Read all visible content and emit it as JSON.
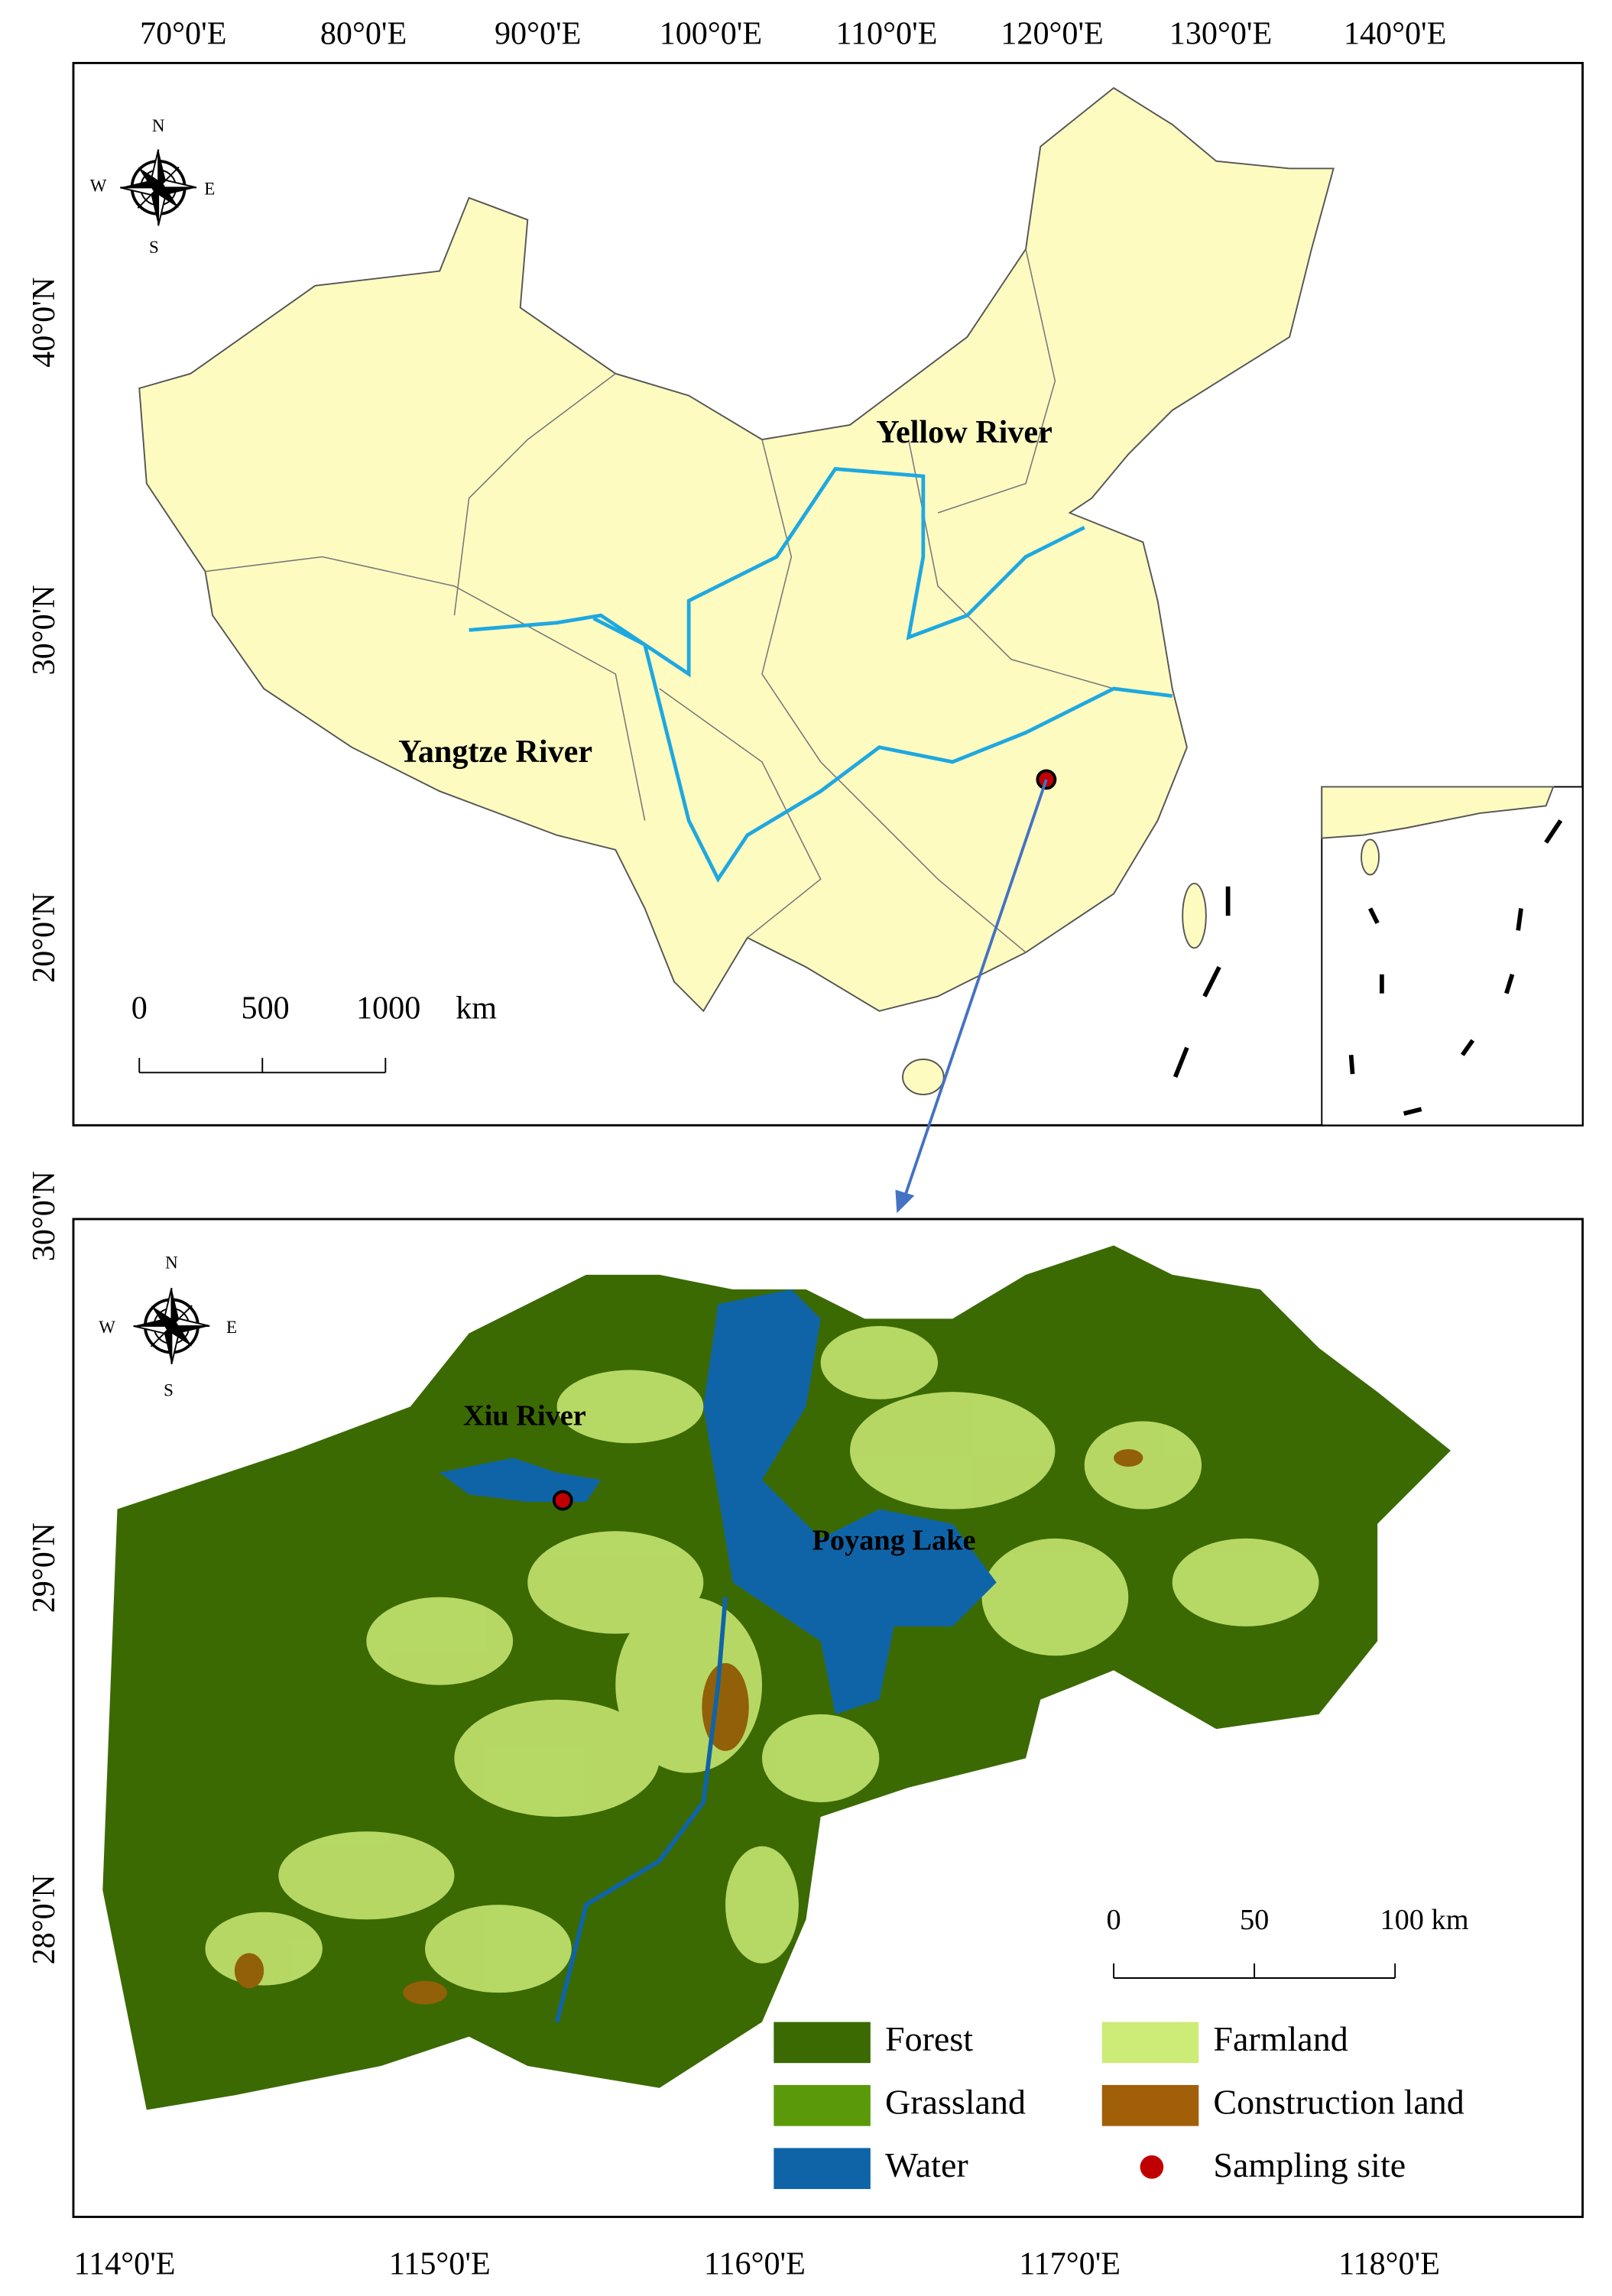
{
  "top_map": {
    "lon_labels": [
      "70°0'E",
      "80°0'E",
      "90°0'E",
      "100°0'E",
      "110°0'E",
      "120°0'E",
      "130°0'E",
      "140°0'E"
    ],
    "lat_labels": [
      "40°0'N",
      "30°0'N",
      "20°0'N"
    ],
    "compass": {
      "n": "N",
      "e": "E",
      "s": "S",
      "w": "W"
    },
    "rivers": [
      "Yellow River",
      "Yangtze River"
    ],
    "scale": [
      "0",
      "500",
      "1000",
      "km"
    ]
  },
  "bottom_map": {
    "lon_labels": [
      "114°0'E",
      "115°0'E",
      "116°0'E",
      "117°0'E",
      "118°0'E"
    ],
    "lat_labels": [
      "30°0'N",
      "29°0'N",
      "28°0'N"
    ],
    "compass": {
      "n": "N",
      "e": "E",
      "s": "S",
      "w": "W"
    },
    "places": [
      "Xiu River",
      "Poyang Lake"
    ],
    "scale": [
      "0",
      "50",
      "100 km"
    ],
    "legend": [
      {
        "label": "Forest",
        "color": "#3b6a02"
      },
      {
        "label": "Farmland",
        "color": "#cdeb77"
      },
      {
        "label": "Grassland",
        "color": "#5a9a0a"
      },
      {
        "label": "Construction land",
        "color": "#a15f0a"
      },
      {
        "label": "Water",
        "color": "#0f64a8"
      },
      {
        "label": "Sampling site",
        "color": "#c00000"
      }
    ]
  }
}
